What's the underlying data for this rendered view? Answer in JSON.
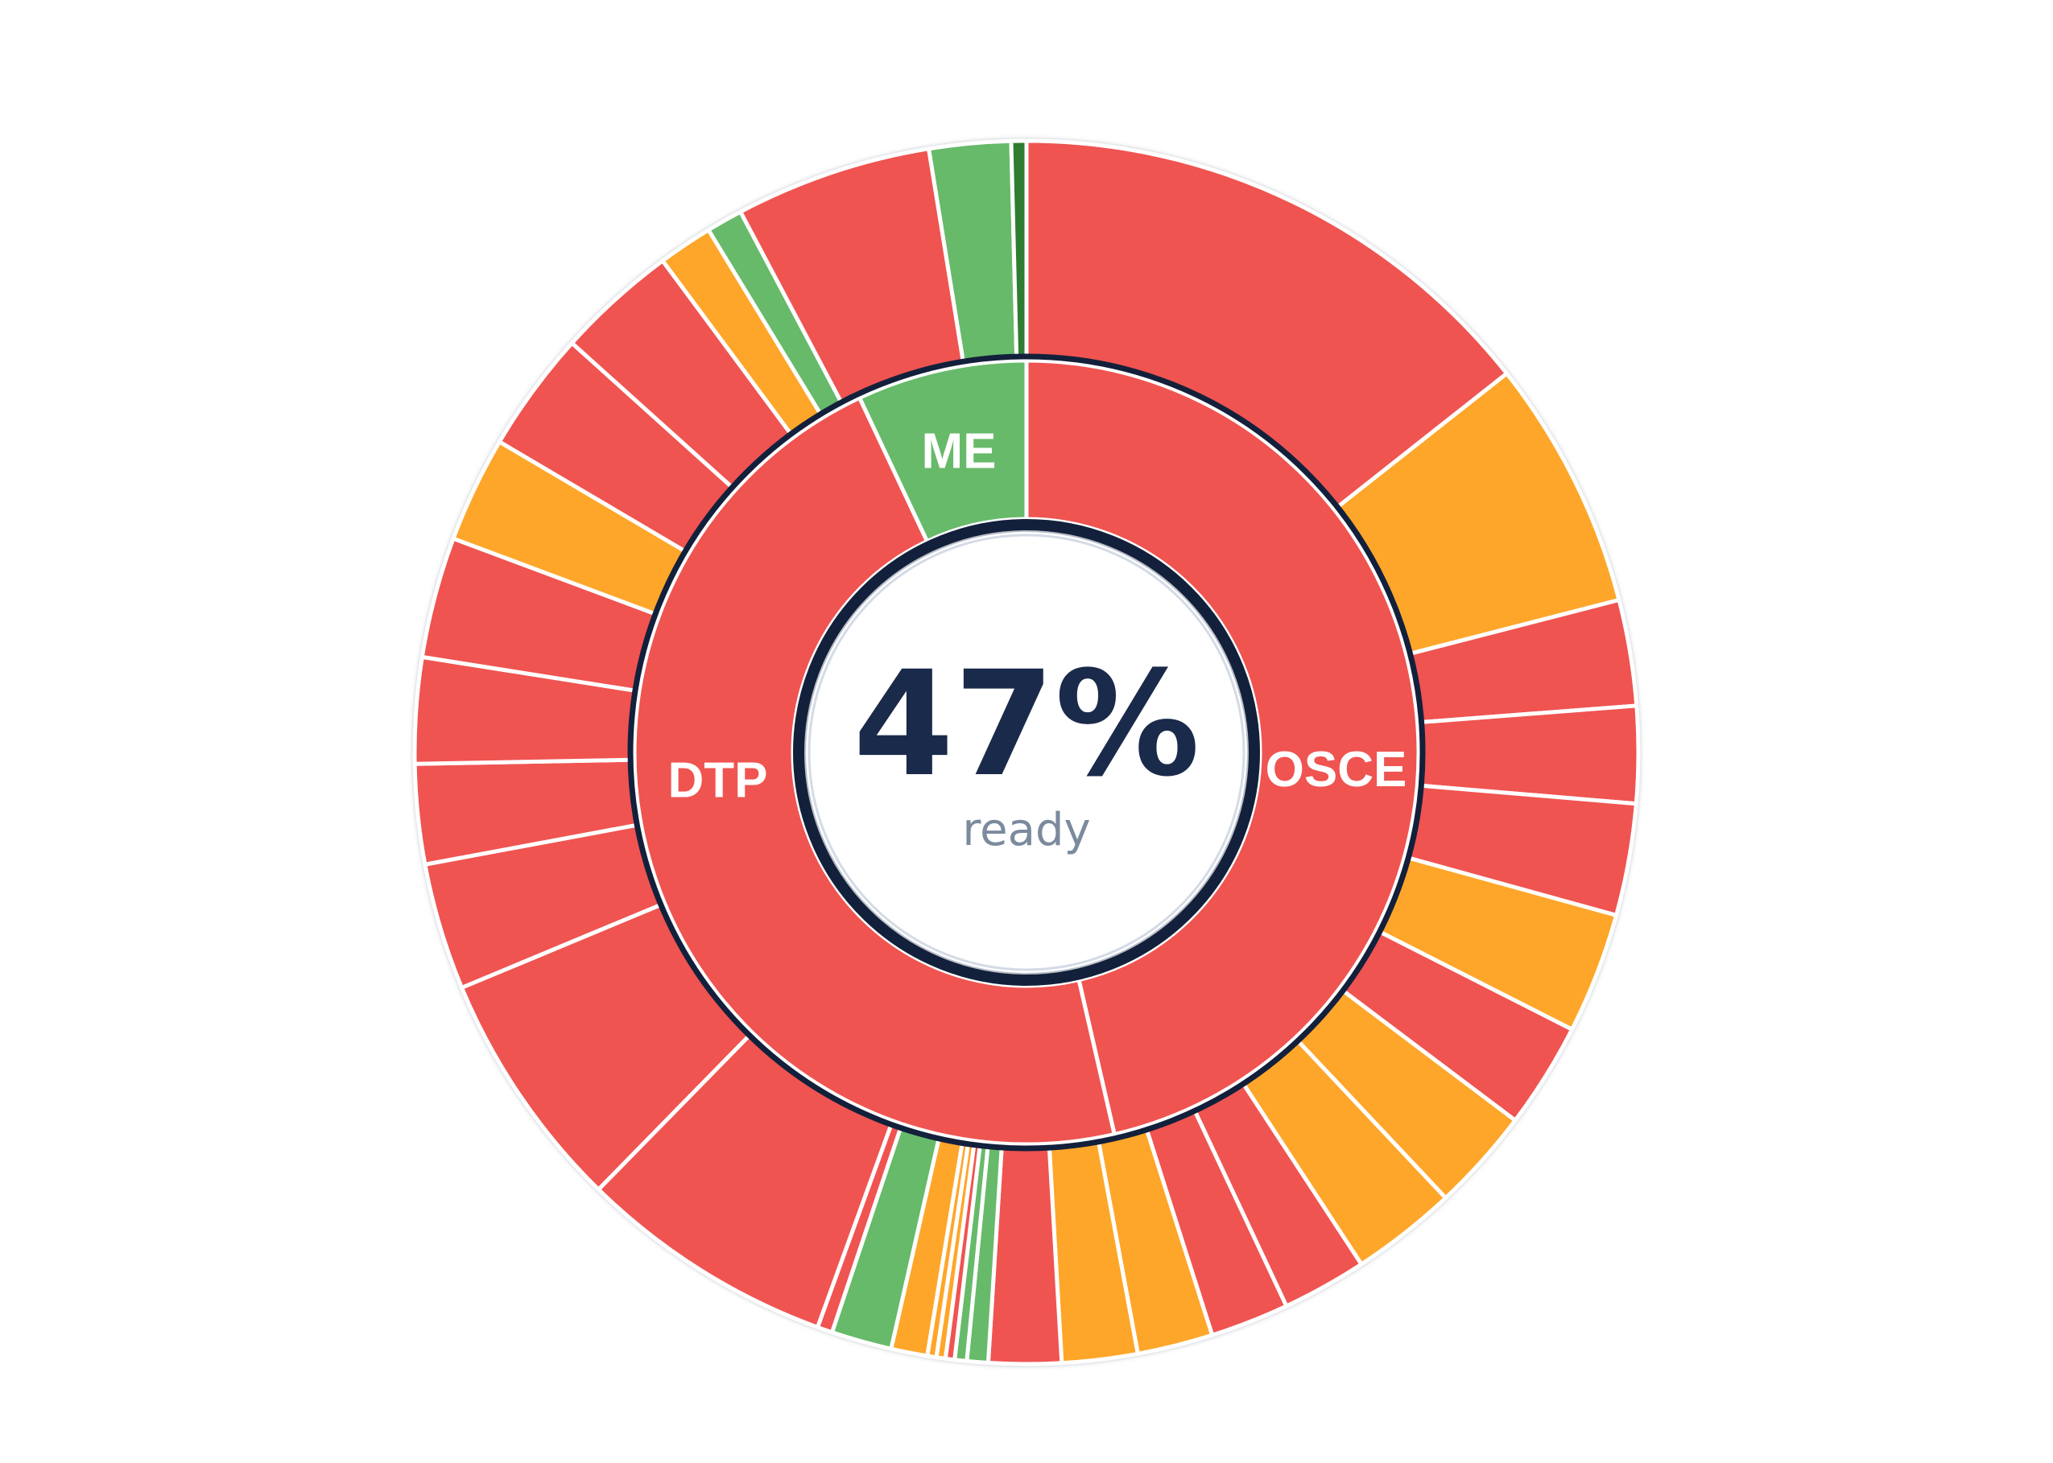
{
  "colors": {
    "red": "#ef5451",
    "orange": "#fea62a",
    "green": "#67ba6a",
    "darkgreen": "#2e7d32",
    "ring": "#13203b",
    "text": "#1a2a4a",
    "subtext": "#7b8a9d"
  },
  "center": {
    "value": "47%",
    "label": "ready"
  },
  "chart_data": {
    "type": "sunburst",
    "inner_ring": [
      {
        "name": "OSCE",
        "value": 46.4,
        "status": "red",
        "label": "OSCE"
      },
      {
        "name": "DTP",
        "value": 46.6,
        "status": "red",
        "label": "DTP"
      },
      {
        "name": "ME",
        "value": 7.0,
        "status": "green",
        "label": "ME"
      }
    ],
    "outer_ring": [
      {
        "value": 18.0,
        "status": "red"
      },
      {
        "value": 8.3,
        "status": "orange"
      },
      {
        "value": 3.5,
        "status": "red"
      },
      {
        "value": 3.2,
        "status": "red"
      },
      {
        "value": 3.7,
        "status": "red"
      },
      {
        "value": 4.0,
        "status": "orange"
      },
      {
        "value": 3.5,
        "status": "red"
      },
      {
        "value": 3.4,
        "status": "orange"
      },
      {
        "value": 3.5,
        "status": "orange"
      },
      {
        "value": 2.8,
        "status": "red"
      },
      {
        "value": 2.6,
        "status": "red"
      },
      {
        "value": 2.5,
        "status": "orange"
      },
      {
        "value": 2.5,
        "status": "orange"
      },
      {
        "value": 2.4,
        "status": "red"
      },
      {
        "value": 0.7,
        "status": "green"
      },
      {
        "value": 0.4,
        "status": "green"
      },
      {
        "value": 0.3,
        "status": "red"
      },
      {
        "value": 0.3,
        "status": "orange"
      },
      {
        "value": 0.3,
        "status": "orange"
      },
      {
        "value": 1.2,
        "status": "orange"
      },
      {
        "value": 2.0,
        "status": "green"
      },
      {
        "value": 0.5,
        "status": "red"
      },
      {
        "value": 8.5,
        "status": "red"
      },
      {
        "value": 8.0,
        "status": "red"
      },
      {
        "value": 4.2,
        "status": "red"
      },
      {
        "value": 3.3,
        "status": "red"
      },
      {
        "value": 3.5,
        "status": "red"
      },
      {
        "value": 4.0,
        "status": "red"
      },
      {
        "value": 3.5,
        "status": "orange"
      },
      {
        "value": 4.0,
        "status": "red"
      },
      {
        "value": 4.0,
        "status": "red"
      },
      {
        "value": 1.8,
        "status": "orange"
      },
      {
        "value": 1.2,
        "status": "green"
      },
      {
        "value": 6.5,
        "status": "red"
      },
      {
        "value": 2.7,
        "status": "green"
      },
      {
        "value": 0.5,
        "status": "darkgreen"
      }
    ]
  }
}
